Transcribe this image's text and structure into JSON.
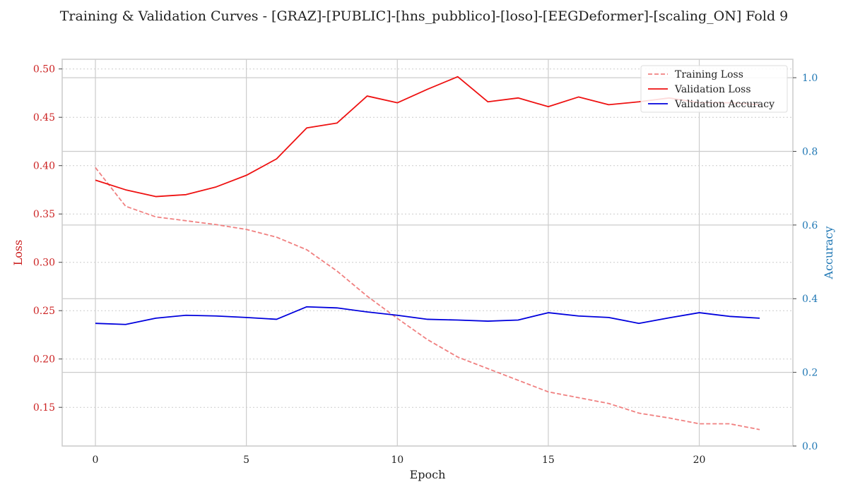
{
  "chart_data": {
    "type": "line",
    "title": "Training & Validation Curves - [GRAZ]-[PUBLIC]-[hns_pubblico]-[loso]-[EEGDeformer]-[scaling_ON] Fold 9",
    "xlabel": "Epoch",
    "ylabel_left": "Loss",
    "ylabel_right": "Accuracy",
    "xlim": [
      -1.1,
      23.1
    ],
    "ylim_left": [
      0.11,
      0.51
    ],
    "ylim_right": [
      0.0,
      1.05
    ],
    "x_ticks": [
      0,
      5,
      10,
      15,
      20
    ],
    "y_ticks_left": [
      0.15,
      0.2,
      0.25,
      0.3,
      0.35,
      0.4,
      0.45,
      0.5
    ],
    "y_ticks_right": [
      0.0,
      0.2,
      0.4,
      0.6,
      0.8,
      1.0
    ],
    "x_tick_labels": [
      "0",
      "5",
      "10",
      "15",
      "20"
    ],
    "y_tick_labels_left": [
      "0.15",
      "0.20",
      "0.25",
      "0.30",
      "0.35",
      "0.40",
      "0.45",
      "0.50"
    ],
    "y_tick_labels_right": [
      "0.0",
      "0.2",
      "0.4",
      "0.6",
      "0.8",
      "1.0"
    ],
    "grid": true,
    "legend_position": "top-right",
    "x": [
      0,
      1,
      2,
      3,
      4,
      5,
      6,
      7,
      8,
      9,
      10,
      11,
      12,
      13,
      14,
      15,
      16,
      17,
      18,
      19,
      20,
      21,
      22
    ],
    "series": [
      {
        "name": "Training Loss",
        "axis": "left",
        "color": "#f08080",
        "style": "dashed",
        "values": [
          0.398,
          0.358,
          0.347,
          0.343,
          0.339,
          0.334,
          0.326,
          0.313,
          0.291,
          0.265,
          0.242,
          0.22,
          0.202,
          0.19,
          0.178,
          0.166,
          0.16,
          0.154,
          0.144,
          0.139,
          0.133,
          0.133,
          0.127
        ]
      },
      {
        "name": "Validation Loss",
        "axis": "left",
        "color": "#ee1111",
        "style": "solid",
        "values": [
          0.385,
          0.375,
          0.368,
          0.37,
          0.378,
          0.39,
          0.407,
          0.439,
          0.444,
          0.472,
          0.465,
          0.479,
          0.492,
          0.466,
          0.47,
          0.461,
          0.471,
          0.463,
          0.466,
          0.47,
          0.465,
          0.465,
          0.463
        ]
      },
      {
        "name": "Validation Accuracy",
        "axis": "right",
        "color": "#0000dd",
        "style": "solid",
        "values": [
          0.333,
          0.33,
          0.347,
          0.355,
          0.353,
          0.349,
          0.344,
          0.378,
          0.375,
          0.364,
          0.355,
          0.344,
          0.342,
          0.339,
          0.342,
          0.362,
          0.353,
          0.349,
          0.333,
          0.348,
          0.362,
          0.352,
          0.347
        ]
      }
    ],
    "colors": {
      "left_axis": "#cc2222",
      "right_axis": "#1f77b4",
      "grid": "#cccccc",
      "spine": "#cccccc"
    }
  }
}
